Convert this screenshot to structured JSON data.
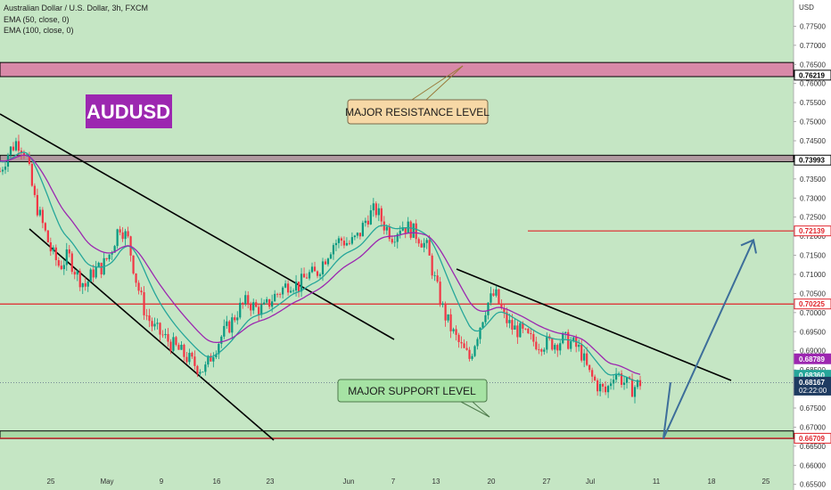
{
  "header": {
    "symbol_line": "Australian Dollar / U.S. Dollar, 3h, FXCM",
    "ema50_line": "EMA (50, close, 0)",
    "ema100_line": "EMA (100, close, 0)"
  },
  "chart_data": {
    "type": "candlestick",
    "title": "AUDUSD",
    "currency_label": "USD",
    "y_range": [
      0.654,
      0.78
    ],
    "y_ticks": [
      "0.77500",
      "0.77000",
      "0.76500",
      "0.76000",
      "0.75500",
      "0.75000",
      "0.74500",
      "0.74000",
      "0.73500",
      "0.73000",
      "0.72500",
      "0.72000",
      "0.71500",
      "0.71000",
      "0.70500",
      "0.70000",
      "0.69500",
      "0.69000",
      "0.68500",
      "0.68000",
      "0.67500",
      "0.67000",
      "0.66500",
      "0.66000",
      "0.65500"
    ],
    "x_ticks": [
      "25",
      "May",
      "9",
      "16",
      "23",
      "Jun",
      "7",
      "13",
      "20",
      "27",
      "Jul",
      "11",
      "18",
      "25"
    ],
    "price_labels": [
      {
        "text": "0.76219",
        "value": 0.76219,
        "bg": "#ffffff",
        "fg": "#000000",
        "border": "#000000"
      },
      {
        "text": "0.73993",
        "value": 0.73993,
        "bg": "#ffffff",
        "fg": "#000000",
        "border": "#000000"
      },
      {
        "text": "0.72139",
        "value": 0.72139,
        "bg": "#ffffff",
        "fg": "#e0242b",
        "border": "#e0242b"
      },
      {
        "text": "0.70225",
        "value": 0.70225,
        "bg": "#ffffff",
        "fg": "#e0242b",
        "border": "#e0242b"
      },
      {
        "text": "0.68789",
        "value": 0.68789,
        "bg": "#9c27b0",
        "fg": "#ffffff",
        "border": "#9c27b0"
      },
      {
        "text": "0.68360",
        "value": 0.6836,
        "bg": "#26a69a",
        "fg": "#ffffff",
        "border": "#26a69a"
      },
      {
        "text": "0.68167",
        "value": 0.68167,
        "sub": "02:22:00",
        "bg": "#1e3b61",
        "fg": "#ffffff",
        "border": "#1e3b61"
      },
      {
        "text": "0.66709",
        "value": 0.66709,
        "bg": "#ffffff",
        "fg": "#e0242b",
        "border": "#e0242b"
      }
    ],
    "zones": [
      {
        "label": "resistance-zone",
        "from": 0.7618,
        "to": 0.7655,
        "color": "#d889a8"
      },
      {
        "label": "upper-zone",
        "from": 0.7395,
        "to": 0.7412,
        "color": "#b09aa0"
      },
      {
        "label": "support-zone",
        "from": 0.667,
        "to": 0.669,
        "color": "#a9d9a6"
      }
    ],
    "levels": [
      {
        "value": 0.72139,
        "color": "#e0242b"
      },
      {
        "value": 0.70225,
        "color": "#e0242b"
      },
      {
        "value": 0.66709,
        "color": "#e0242b"
      }
    ],
    "annotations": [
      {
        "text": "MAJOR RESISTANCE LEVEL",
        "bg": "#f7d8a6"
      },
      {
        "text": "MAJOR SUPPORT LEVEL",
        "bg": "#a6e3a4"
      }
    ],
    "colors": {
      "up": "#089981",
      "down": "#f23645",
      "ema50": "#26a69a",
      "ema100": "#9c27b0",
      "projection": "#3d6e9a",
      "badge": "#9c27b0"
    },
    "price_path": [
      0.737,
      0.742,
      0.745,
      0.742,
      0.73,
      0.723,
      0.716,
      0.712,
      0.715,
      0.71,
      0.707,
      0.711,
      0.712,
      0.716,
      0.723,
      0.719,
      0.708,
      0.7,
      0.696,
      0.694,
      0.692,
      0.69,
      0.688,
      0.686,
      0.685,
      0.69,
      0.694,
      0.697,
      0.701,
      0.703,
      0.701,
      0.701,
      0.704,
      0.706,
      0.708,
      0.707,
      0.71,
      0.71,
      0.714,
      0.718,
      0.719,
      0.718,
      0.72,
      0.725,
      0.727,
      0.723,
      0.72,
      0.723,
      0.722,
      0.72,
      0.717,
      0.708,
      0.7,
      0.695,
      0.691,
      0.688,
      0.695,
      0.702,
      0.705,
      0.699,
      0.696,
      0.695,
      0.693,
      0.692,
      0.692,
      0.692,
      0.693,
      0.692,
      0.69,
      0.684,
      0.681,
      0.679,
      0.685,
      0.682,
      0.68,
      0.6817
    ],
    "projection": [
      0.6817,
      0.667,
      0.719
    ]
  }
}
